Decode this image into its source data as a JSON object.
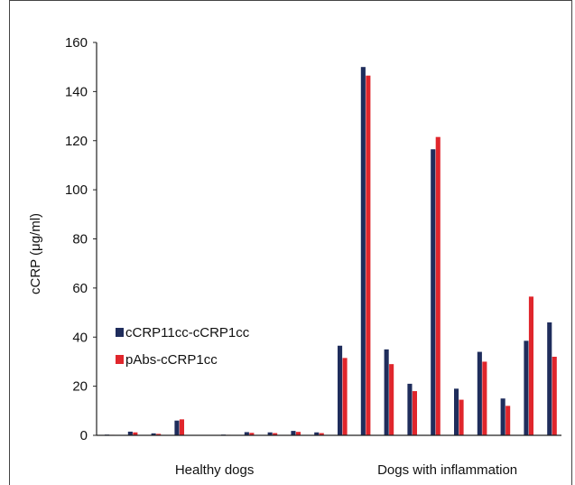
{
  "chart_data": {
    "type": "bar",
    "ylabel": "cCRP (μg/ml)",
    "ylim": [
      0,
      160
    ],
    "yticks": [
      0,
      20,
      40,
      60,
      80,
      100,
      120,
      140,
      160
    ],
    "grid": false,
    "legend": "left-middle",
    "groups": [
      {
        "label": "Healthy dogs",
        "start": 0,
        "count": 10
      },
      {
        "label": "Dogs with inflammation",
        "start": 10,
        "count": 10
      }
    ],
    "series": [
      {
        "name": "cCRP11cc-cCRP1cc",
        "color": "#1f2d5c",
        "values": [
          0.3,
          1.5,
          0.8,
          6,
          0.3,
          1.3,
          1.2,
          1.8,
          1.2,
          36.5,
          150,
          35,
          21,
          116.5,
          19,
          34,
          15,
          38.5,
          46
        ]
      },
      {
        "name": "pAbs-cCRP1cc",
        "color": "#e0262c",
        "values": [
          0.2,
          1.2,
          0.6,
          6.5,
          0.2,
          1.0,
          0.9,
          1.4,
          0.9,
          31.5,
          146.5,
          29,
          18,
          121.5,
          14.5,
          30,
          12,
          56.5,
          32
        ]
      }
    ],
    "positions": [
      0,
      1,
      2,
      3,
      5,
      6,
      7,
      8,
      9,
      10,
      11,
      12,
      13,
      14,
      15,
      16,
      17,
      18,
      19
    ]
  }
}
